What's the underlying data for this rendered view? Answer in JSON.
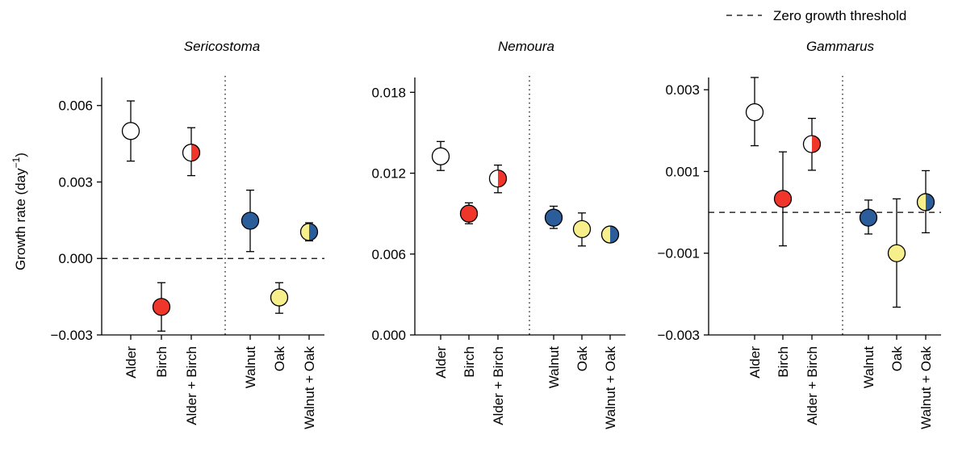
{
  "legend": {
    "label": "Zero growth threshold"
  },
  "ylabel": "Growth rate (day",
  "ylabel_sup": "−1",
  "ylabel_close": ")",
  "colors": {
    "Alder": "#ffffff",
    "Birch": "#f0352b",
    "Walnut": "#2b5d9a",
    "Oak": "#f7ee8c",
    "stroke": "#000000"
  },
  "chart_data": [
    {
      "type": "scatter",
      "title": "Sericostoma",
      "ylim": [
        -0.003,
        0.0071
      ],
      "yticks": [
        -0.003,
        0.0,
        0.003,
        0.006
      ],
      "ytick_labels": [
        "−0.003",
        "0.000",
        "0.003",
        "0.006"
      ],
      "zero_line": true,
      "categories": [
        "Alder",
        "Birch",
        "Alder + Birch",
        "Walnut",
        "Oak",
        "Walnut + Oak"
      ],
      "values": [
        0.005,
        -0.0019,
        0.00415,
        0.00148,
        -0.00153,
        0.00104
      ],
      "err_low": [
        0.00382,
        -0.00285,
        0.00325,
        0.00027,
        -0.00215,
        0.00069
      ],
      "err_high": [
        0.00618,
        -0.00095,
        0.00513,
        0.00268,
        -0.00095,
        0.0014
      ],
      "fills": [
        [
          "Alder"
        ],
        [
          "Birch"
        ],
        [
          "Alder",
          "Birch"
        ],
        [
          "Walnut"
        ],
        [
          "Oak"
        ],
        [
          "Oak",
          "Walnut"
        ]
      ]
    },
    {
      "type": "scatter",
      "title": "Nemoura",
      "ylim": [
        0.0,
        0.0191
      ],
      "yticks": [
        0.0,
        0.006,
        0.012,
        0.018
      ],
      "ytick_labels": [
        "0.000",
        "0.006",
        "0.012",
        "0.018"
      ],
      "zero_line": false,
      "categories": [
        "Alder",
        "Birch",
        "Alder + Birch",
        "Walnut",
        "Oak",
        "Walnut + Oak"
      ],
      "values": [
        0.01325,
        0.009,
        0.0116,
        0.0087,
        0.00785,
        0.00745
      ],
      "err_low": [
        0.0122,
        0.00825,
        0.01055,
        0.0079,
        0.0066,
        0.007
      ],
      "err_high": [
        0.01435,
        0.0098,
        0.0126,
        0.00955,
        0.00905,
        0.00795
      ],
      "fills": [
        [
          "Alder"
        ],
        [
          "Birch"
        ],
        [
          "Alder",
          "Birch"
        ],
        [
          "Walnut"
        ],
        [
          "Oak"
        ],
        [
          "Oak",
          "Walnut"
        ]
      ]
    },
    {
      "type": "scatter",
      "title": "Gammarus",
      "ylim": [
        -0.003,
        0.0033
      ],
      "yticks": [
        -0.003,
        -0.001,
        0.001,
        0.003
      ],
      "ytick_labels": [
        "−0.003",
        "−0.001",
        "0.001",
        "0.003"
      ],
      "zero_line": true,
      "categories": [
        "Alder",
        "Birch",
        "Alder + Birch",
        "Walnut",
        "Oak",
        "Walnut + Oak"
      ],
      "values": [
        0.00245,
        0.00033,
        0.00167,
        -0.00013,
        -0.001,
        0.00025
      ],
      "err_low": [
        0.00163,
        -0.00082,
        0.00103,
        -0.00053,
        -0.00232,
        -0.0005
      ],
      "err_high": [
        0.0033,
        0.00148,
        0.0023,
        0.0003,
        0.00033,
        0.00102
      ],
      "fills": [
        [
          "Alder"
        ],
        [
          "Birch"
        ],
        [
          "Alder",
          "Birch"
        ],
        [
          "Walnut"
        ],
        [
          "Oak"
        ],
        [
          "Oak",
          "Walnut"
        ]
      ]
    }
  ]
}
